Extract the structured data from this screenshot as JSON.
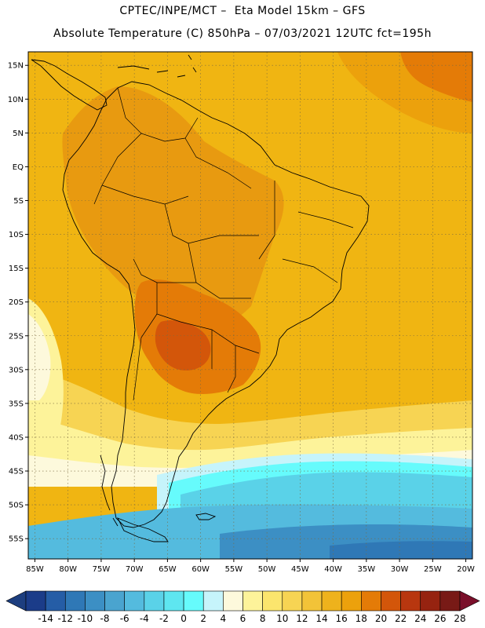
{
  "header": {
    "line1": "CPTEC/INPE/MCT –  Eta Model 15km – GFS",
    "line2": "Absolute Temperature (C) 850hPa – 07/03/2021 12UTC fct=195h"
  },
  "map": {
    "lat_labels": [
      "15N",
      "10N",
      "5N",
      "EQ",
      "5S",
      "10S",
      "15S",
      "20S",
      "25S",
      "30S",
      "35S",
      "40S",
      "45S",
      "50S",
      "55S"
    ],
    "lon_labels": [
      "85W",
      "80W",
      "75W",
      "70W",
      "65W",
      "60W",
      "55W",
      "50W",
      "45W",
      "40W",
      "35W",
      "30W",
      "25W",
      "20W"
    ],
    "extent": {
      "lon": [
        -86,
        -19
      ],
      "lat": [
        -58,
        17
      ]
    },
    "background_color": "#f0b512"
  },
  "colorbar": {
    "labels": [
      "-14",
      "-12",
      "-10",
      "-8",
      "-6",
      "-4",
      "-2",
      "0",
      "2",
      "4",
      "6",
      "8",
      "10",
      "12",
      "14",
      "16",
      "18",
      "20",
      "22",
      "24",
      "26",
      "28"
    ],
    "colors": [
      "#1b3c89",
      "#255da6",
      "#2f78b6",
      "#3c8fc4",
      "#4aa4cf",
      "#54bbde",
      "#5ad2e8",
      "#5ee6f0",
      "#66fbfc",
      "#c6f4fb",
      "#fdf9dc",
      "#fdf39a",
      "#fbe56d",
      "#f7d453",
      "#f2c338",
      "#eeb21c",
      "#eca10c",
      "#e47b07",
      "#d3560a",
      "#b8370f",
      "#962310",
      "#781a16"
    ],
    "low_end_color": "#1d3e7f",
    "high_end_color": "#7a0f2a"
  }
}
